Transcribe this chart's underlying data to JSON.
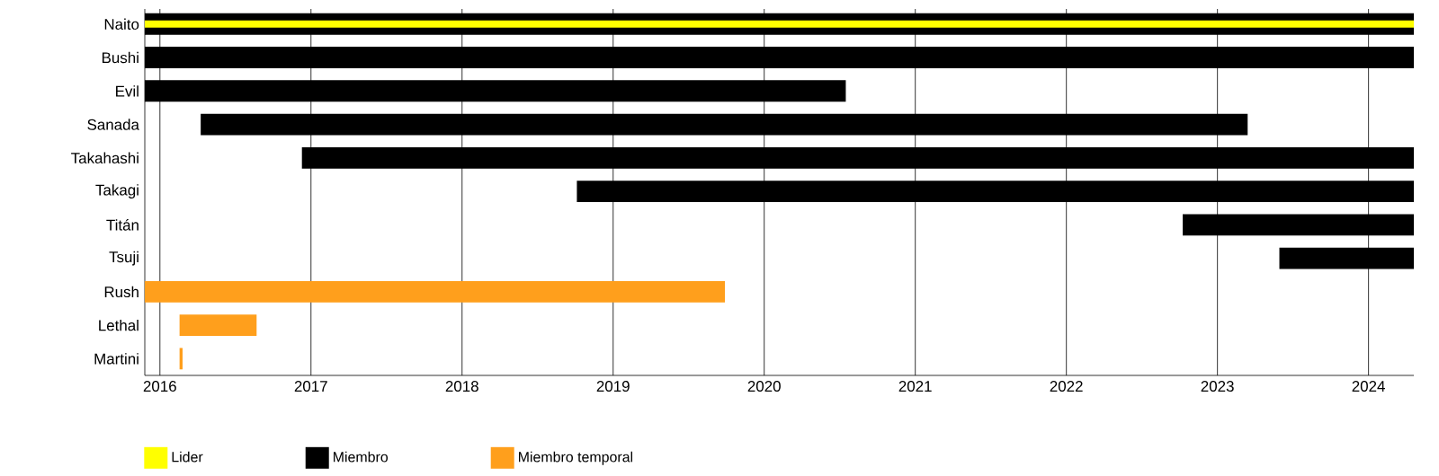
{
  "chart_data": {
    "type": "bar",
    "orientation": "horizontal",
    "categories": [
      "Naito",
      "Bushi",
      "Evil",
      "Sanada",
      "Takahashi",
      "Takagi",
      "Titán",
      "Tsuji",
      "Rush",
      "Lethal",
      "Martini"
    ],
    "xlim": [
      2015.9,
      2024.3
    ],
    "xticks": [
      2016,
      2017,
      2018,
      2019,
      2020,
      2021,
      2022,
      2023,
      2024
    ],
    "grid": "x",
    "legend": "bottom",
    "series": [
      {
        "name": "Miembro",
        "color": "#000000",
        "base": [
          2015.9,
          2015.9,
          2015.9,
          2016.27,
          2016.94,
          2018.76,
          2022.77,
          2023.41,
          null,
          null,
          null
        ],
        "values": [
          8.4,
          8.4,
          4.64,
          6.93,
          7.36,
          5.54,
          1.53,
          0.89,
          null,
          null,
          null
        ]
      },
      {
        "name": "Lider",
        "color": "#ffff00",
        "base": [
          2015.9,
          null,
          null,
          null,
          null,
          null,
          null,
          null,
          null,
          null,
          null
        ],
        "values": [
          8.4,
          null,
          null,
          null,
          null,
          null,
          null,
          null,
          null,
          null,
          null
        ]
      },
      {
        "name": "Miembro temporal",
        "color": "#ff9f1c",
        "base": [
          null,
          null,
          null,
          null,
          null,
          null,
          null,
          null,
          2015.9,
          2016.13,
          2016.13
        ],
        "values": [
          null,
          null,
          null,
          null,
          null,
          null,
          null,
          null,
          3.84,
          0.51,
          0.02
        ]
      }
    ]
  }
}
